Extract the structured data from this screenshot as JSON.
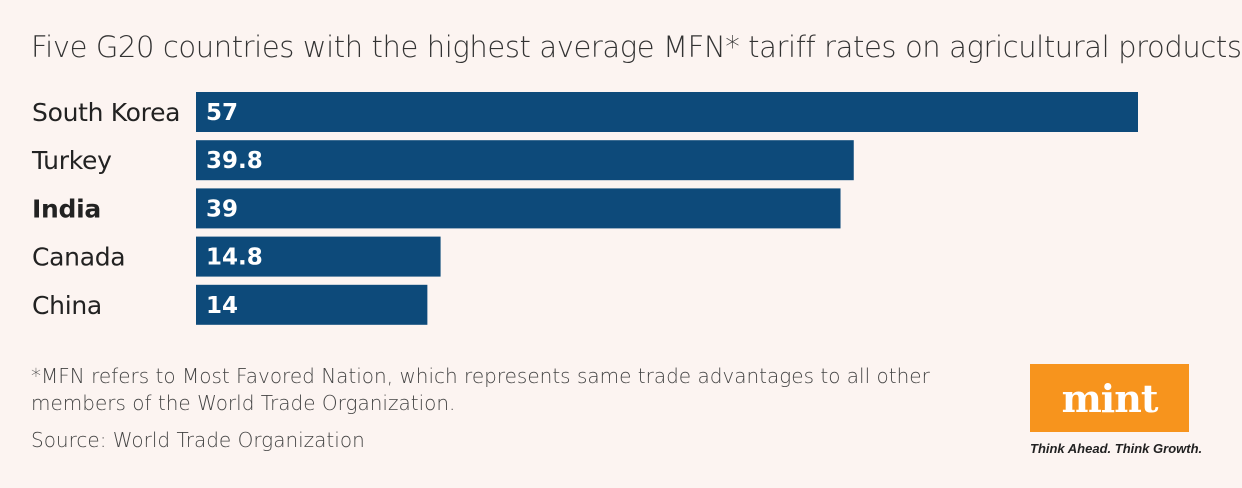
{
  "chart_data": {
    "type": "bar",
    "orientation": "horizontal",
    "title": "Five G20 countries with the highest average MFN* tariff rates on agricultural products",
    "categories": [
      "South Korea",
      "Turkey",
      "India",
      "Canada",
      "China"
    ],
    "values": [
      57,
      39.8,
      39,
      14.8,
      14
    ],
    "value_labels": [
      "57",
      "39.8",
      "39",
      "14.8",
      "14"
    ],
    "highlight": "India",
    "xlim": [
      0,
      57
    ],
    "xlabel": "",
    "ylabel": "",
    "bar_color": "#0d4a7a"
  },
  "footnote": "*MFN refers to Most Favored Nation, which represents same trade advantages to all other members of the World Trade Organization.",
  "source": "Source: World Trade Organization",
  "logo": {
    "text": "mint",
    "tagline": "Think Ahead. Think Growth.",
    "color": "#f7941d"
  }
}
